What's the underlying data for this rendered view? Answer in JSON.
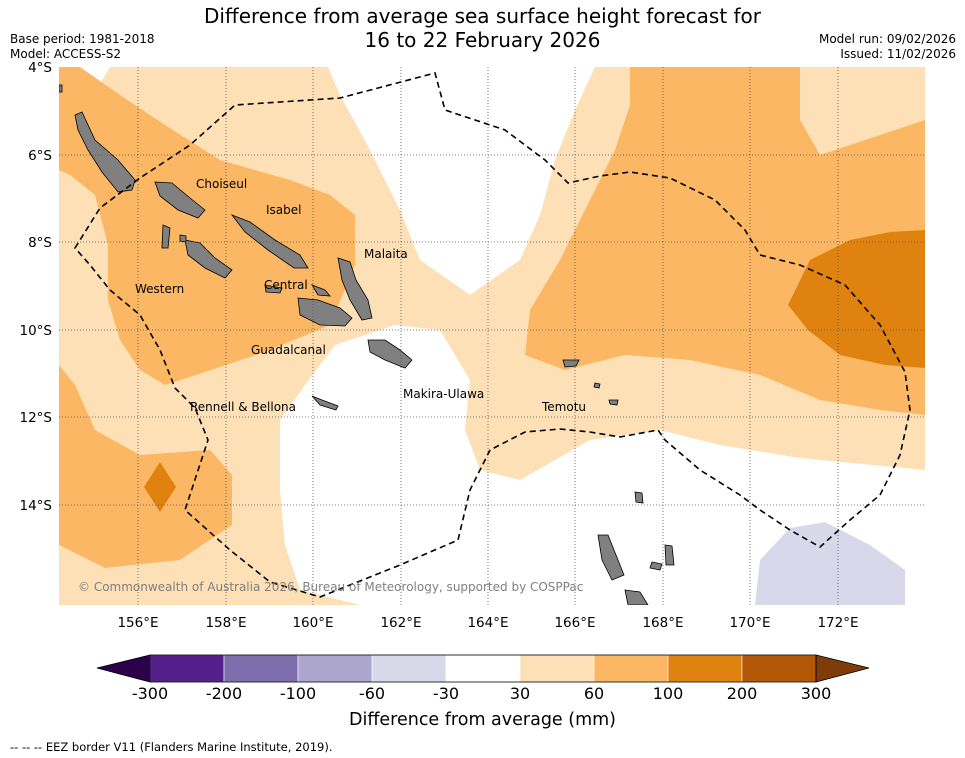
{
  "header": {
    "title_line1": "Difference from average sea surface height forecast for",
    "title_line2": "16 to 22 February 2026",
    "base_period": "Base period: 1981-2018",
    "model": "Model: ACCESS-S2",
    "model_run": "Model run: 09/02/2026",
    "issued": "Issued: 11/02/2026"
  },
  "map": {
    "lat_ticks": [
      "4°S",
      "6°S",
      "8°S",
      "10°S",
      "12°S",
      "14°S"
    ],
    "lon_ticks": [
      "156°E",
      "158°E",
      "160°E",
      "162°E",
      "164°E",
      "166°E",
      "168°E",
      "170°E",
      "172°E"
    ],
    "places": [
      "Choiseul",
      "Isabel",
      "Malaita",
      "Western",
      "Central",
      "Guadalcanal",
      "Rennell & Bellona",
      "Makira-Ulawa",
      "Temotu"
    ],
    "copyright": "© Commonwealth of Australia 2026, Bureau of Meteorology, supported by COSPPac"
  },
  "colorbar": {
    "labels": [
      "-300",
      "-200",
      "-100",
      "-60",
      "-30",
      "30",
      "60",
      "100",
      "200",
      "300"
    ],
    "colors": [
      "#541f8a",
      "#7e6ead",
      "#aca6ce",
      "#d9d8ea",
      "#ffffff",
      "#fee0b6",
      "#fbb763",
      "#e0820f",
      "#b35806"
    ],
    "under_color": "#2d004b",
    "over_color": "#7f3b08",
    "title": "Difference from average (mm)"
  },
  "footer": {
    "eez_note": "-- -- -- EEZ border V11 (Flanders Marine Institute, 2019)."
  },
  "colors": {
    "land": "#808080",
    "light_orange": "#fee0b6",
    "mid_orange": "#fbb763",
    "dark_orange": "#e0820f",
    "lavender": "#d9d8ea"
  }
}
